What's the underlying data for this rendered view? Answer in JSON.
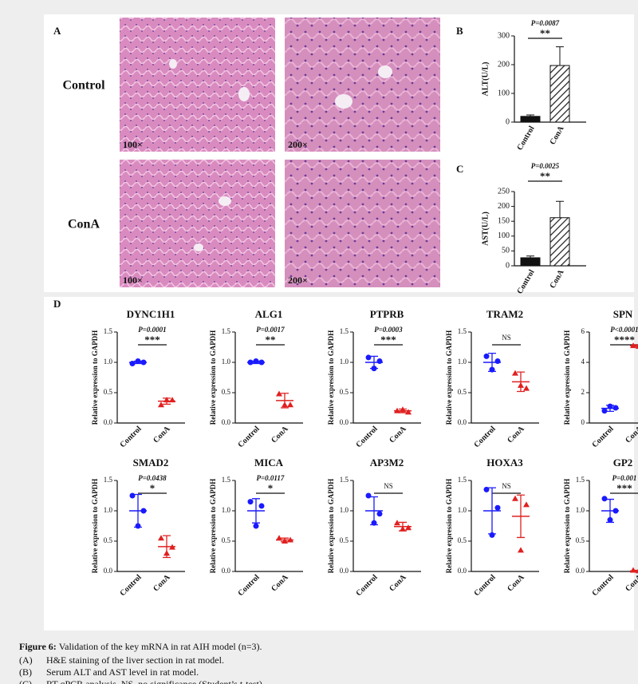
{
  "panel_labels": [
    "A",
    "B",
    "C",
    "D"
  ],
  "histology": {
    "rows": [
      "Control",
      "ConA"
    ],
    "magnifications": [
      "100×",
      "200×"
    ]
  },
  "chart_data": [
    {
      "type": "bar",
      "ylabel": "ALT(U/L)",
      "categories": [
        "Control",
        "ConA"
      ],
      "values": [
        20,
        197
      ],
      "errors": [
        5,
        65
      ],
      "colors": [
        "#111111",
        "#ffffff"
      ],
      "hatch": [
        false,
        true
      ],
      "ylim": [
        0,
        300
      ],
      "yticks": [
        0,
        100,
        200,
        300
      ],
      "annotation": {
        "p": "P=0.0087",
        "stars": "**"
      }
    },
    {
      "type": "bar",
      "ylabel": "AST(U/L)",
      "categories": [
        "Control",
        "ConA"
      ],
      "values": [
        27,
        162
      ],
      "errors": [
        6,
        55
      ],
      "colors": [
        "#111111",
        "#ffffff"
      ],
      "hatch": [
        false,
        true
      ],
      "ylim": [
        0,
        250
      ],
      "yticks": [
        0,
        50,
        100,
        150,
        200,
        250
      ],
      "annotation": {
        "p": "P=0.0025",
        "stars": "**"
      }
    },
    {
      "type": "scatter",
      "title": "DYNC1H1",
      "ylabel": "Relative expression to GAPDH",
      "ylim": [
        0,
        1.5
      ],
      "yticks": [
        {
          "value": 0,
          "label": "0.0"
        },
        {
          "value": 0.5,
          "label": "0.5"
        },
        {
          "value": 1,
          "label": "1.0"
        },
        {
          "value": 1.5,
          "label": "1.5"
        }
      ],
      "annotation": {
        "p": "P=0.0001",
        "stars": "***"
      },
      "groups": [
        {
          "name": "Control",
          "color": "#1a1aff",
          "marker": "circle",
          "points": [
            0.98,
            1.02,
            1.0
          ],
          "mean": 1.0,
          "sd": 0.02
        },
        {
          "name": "ConA",
          "color": "#e02020",
          "marker": "triangle",
          "points": [
            0.3,
            0.38,
            0.38
          ],
          "mean": 0.36,
          "sd": 0.05
        }
      ]
    },
    {
      "type": "scatter",
      "title": "ALG1",
      "ylabel": "Relative expression to GAPDH",
      "ylim": [
        0,
        1.5
      ],
      "yticks": [
        {
          "value": 0,
          "label": "0.0"
        },
        {
          "value": 0.5,
          "label": "0.5"
        },
        {
          "value": 1,
          "label": "1.0"
        },
        {
          "value": 1.5,
          "label": "1.5"
        }
      ],
      "annotation": {
        "p": "P=0.0017",
        "stars": "**"
      },
      "groups": [
        {
          "name": "Control",
          "color": "#1a1aff",
          "marker": "circle",
          "points": [
            1.0,
            1.02,
            1.0
          ],
          "mean": 1.0,
          "sd": 0.02
        },
        {
          "name": "ConA",
          "color": "#e02020",
          "marker": "triangle",
          "points": [
            0.48,
            0.3,
            0.3
          ],
          "mean": 0.37,
          "sd": 0.12
        }
      ]
    },
    {
      "type": "scatter",
      "title": "PTPRB",
      "ylabel": "Relative expression to GAPDH",
      "ylim": [
        0,
        1.5
      ],
      "yticks": [
        {
          "value": 0,
          "label": "0.0"
        },
        {
          "value": 0.5,
          "label": "0.5"
        },
        {
          "value": 1,
          "label": "1.0"
        },
        {
          "value": 1.5,
          "label": "1.5"
        }
      ],
      "annotation": {
        "p": "P=0.0003",
        "stars": "***"
      },
      "groups": [
        {
          "name": "Control",
          "color": "#1a1aff",
          "marker": "circle",
          "points": [
            1.08,
            0.9,
            1.02
          ],
          "mean": 1.0,
          "sd": 0.1
        },
        {
          "name": "ConA",
          "color": "#e02020",
          "marker": "triangle",
          "points": [
            0.2,
            0.22,
            0.18
          ],
          "mean": 0.2,
          "sd": 0.03
        }
      ]
    },
    {
      "type": "scatter",
      "title": "TRAM2",
      "ylabel": "Relative expression to GAPDH",
      "ylim": [
        0,
        1.5
      ],
      "yticks": [
        {
          "value": 0,
          "label": "0.0"
        },
        {
          "value": 0.5,
          "label": "0.5"
        },
        {
          "value": 1,
          "label": "1.0"
        },
        {
          "value": 1.5,
          "label": "1.5"
        }
      ],
      "annotation": {
        "stars": "NS"
      },
      "groups": [
        {
          "name": "Control",
          "color": "#1a1aff",
          "marker": "circle",
          "points": [
            1.1,
            0.88,
            1.02
          ],
          "mean": 1.0,
          "sd": 0.15
        },
        {
          "name": "ConA",
          "color": "#e02020",
          "marker": "triangle",
          "points": [
            0.82,
            0.62,
            0.57
          ],
          "mean": 0.68,
          "sd": 0.16
        }
      ]
    },
    {
      "type": "scatter",
      "title": "SPN",
      "ylabel": "Relative expression to GAPDH",
      "ylim": [
        0,
        6
      ],
      "yticks": [
        0,
        2,
        4,
        6
      ],
      "annotation": {
        "p": "P<0.0001",
        "stars": "****"
      },
      "groups": [
        {
          "name": "Control",
          "color": "#1a1aff",
          "marker": "circle",
          "points": [
            0.8,
            1.1,
            1.0
          ],
          "mean": 0.97,
          "sd": 0.2
        },
        {
          "name": "ConA",
          "color": "#e02020",
          "marker": "triangle",
          "points": [
            5.1,
            5.05,
            5.12
          ],
          "mean": 5.1,
          "sd": 0.06
        }
      ]
    },
    {
      "type": "scatter",
      "title": "SMAD2",
      "ylabel": "Relative expression to GAPDH",
      "ylim": [
        0,
        1.5
      ],
      "yticks": [
        {
          "value": 0,
          "label": "0.0"
        },
        {
          "value": 0.5,
          "label": "0.5"
        },
        {
          "value": 1,
          "label": "1.0"
        },
        {
          "value": 1.5,
          "label": "1.5"
        }
      ],
      "annotation": {
        "p": "P=0.0438",
        "stars": "*"
      },
      "groups": [
        {
          "name": "Control",
          "color": "#1a1aff",
          "marker": "circle",
          "points": [
            1.25,
            0.75,
            1.0
          ],
          "mean": 1.0,
          "sd": 0.27
        },
        {
          "name": "ConA",
          "color": "#e02020",
          "marker": "triangle",
          "points": [
            0.55,
            0.3,
            0.4
          ],
          "mean": 0.41,
          "sd": 0.18
        }
      ]
    },
    {
      "type": "scatter",
      "title": "MICA",
      "ylabel": "Relative expression to GAPDH",
      "ylim": [
        0,
        1.5
      ],
      "yticks": [
        {
          "value": 0,
          "label": "0.0"
        },
        {
          "value": 0.5,
          "label": "0.5"
        },
        {
          "value": 1,
          "label": "1.0"
        },
        {
          "value": 1.5,
          "label": "1.5"
        }
      ],
      "annotation": {
        "p": "P=0.0117",
        "stars": "*"
      },
      "groups": [
        {
          "name": "Control",
          "color": "#1a1aff",
          "marker": "circle",
          "points": [
            1.15,
            0.75,
            1.08
          ],
          "mean": 1.0,
          "sd": 0.2
        },
        {
          "name": "ConA",
          "color": "#e02020",
          "marker": "triangle",
          "points": [
            0.55,
            0.5,
            0.52
          ],
          "mean": 0.52,
          "sd": 0.03
        }
      ]
    },
    {
      "type": "scatter",
      "title": "AP3M2",
      "ylabel": "Relative expression to GAPDH",
      "ylim": [
        0,
        1.5
      ],
      "yticks": [
        {
          "value": 0,
          "label": "0.0"
        },
        {
          "value": 0.5,
          "label": "0.5"
        },
        {
          "value": 1,
          "label": "1.0"
        },
        {
          "value": 1.5,
          "label": "1.5"
        }
      ],
      "annotation": {
        "stars": "NS"
      },
      "groups": [
        {
          "name": "Control",
          "color": "#1a1aff",
          "marker": "circle",
          "points": [
            1.25,
            0.8,
            0.95
          ],
          "mean": 1.0,
          "sd": 0.23
        },
        {
          "name": "ConA",
          "color": "#e02020",
          "marker": "triangle",
          "points": [
            0.8,
            0.7,
            0.72
          ],
          "mean": 0.74,
          "sd": 0.07
        }
      ]
    },
    {
      "type": "scatter",
      "title": "HOXA3",
      "ylabel": "Relative expression to GAPDH",
      "ylim": [
        0,
        1.5
      ],
      "yticks": [
        {
          "value": 0,
          "label": "0.0"
        },
        {
          "value": 0.5,
          "label": "0.5"
        },
        {
          "value": 1,
          "label": "1.0"
        },
        {
          "value": 1.5,
          "label": "1.5"
        }
      ],
      "annotation": {
        "stars": "NS"
      },
      "groups": [
        {
          "name": "Control",
          "color": "#1a1aff",
          "marker": "circle",
          "points": [
            1.35,
            0.6,
            1.05
          ],
          "mean": 1.0,
          "sd": 0.38
        },
        {
          "name": "ConA",
          "color": "#e02020",
          "marker": "triangle",
          "points": [
            1.2,
            0.35,
            1.1
          ],
          "mean": 0.91,
          "sd": 0.35
        }
      ]
    },
    {
      "type": "scatter",
      "title": "GP2",
      "ylabel": "Relative expression to GAPDH",
      "ylim": [
        0,
        1.5
      ],
      "yticks": [
        {
          "value": 0,
          "label": "0.0"
        },
        {
          "value": 0.5,
          "label": "0.5"
        },
        {
          "value": 1,
          "label": "1.0"
        },
        {
          "value": 1.5,
          "label": "1.5"
        }
      ],
      "annotation": {
        "p": "P=0.001",
        "stars": "***"
      },
      "groups": [
        {
          "name": "Control",
          "color": "#1a1aff",
          "marker": "circle",
          "points": [
            1.2,
            0.85,
            1.0
          ],
          "mean": 1.0,
          "sd": 0.19
        },
        {
          "name": "ConA",
          "color": "#e02020",
          "marker": "triangle",
          "points": [
            0.02,
            0.01,
            0.02
          ],
          "mean": 0.01,
          "sd": 0.01
        }
      ]
    }
  ],
  "caption": {
    "figure_label": "Figure 6:",
    "title": "Validation of the key mRNA in rat AIH model (n=3).",
    "items": [
      {
        "label": "(A)",
        "text": "H&E staining of the liver section in rat model."
      },
      {
        "label": "(B)",
        "text": "Serum ALT and AST level in rat model."
      },
      {
        "label": "(C)",
        "text": "RT-qPCR analysis. NS, no significance (Student’s t-test)."
      }
    ]
  }
}
